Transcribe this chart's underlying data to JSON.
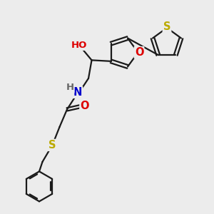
{
  "bg_color": "#ececec",
  "bond_color": "#1a1a1a",
  "bond_width": 1.6,
  "atom_colors": {
    "O": "#dd0000",
    "N": "#0000cc",
    "S": "#bbaa00",
    "H": "#555555",
    "C": "#1a1a1a"
  },
  "font_size": 9.5,
  "fig_bg": "#ececec"
}
